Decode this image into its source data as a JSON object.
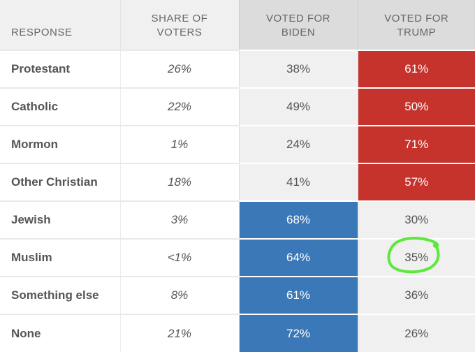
{
  "headers": {
    "response": "RESPONSE",
    "share": [
      "SHARE OF",
      "VOTERS"
    ],
    "biden": [
      "VOTED FOR",
      "BIDEN"
    ],
    "trump": [
      "VOTED FOR",
      "TRUMP"
    ]
  },
  "colors": {
    "trump_win": "#c5332c",
    "biden_win": "#3b78b8",
    "annotation": "#5de83a"
  },
  "rows": [
    {
      "response": "Protestant",
      "share": "26%",
      "biden": "38%",
      "trump": "61%",
      "winner": "trump"
    },
    {
      "response": "Catholic",
      "share": "22%",
      "biden": "49%",
      "trump": "50%",
      "winner": "trump"
    },
    {
      "response": "Mormon",
      "share": "1%",
      "biden": "24%",
      "trump": "71%",
      "winner": "trump"
    },
    {
      "response": "Other Christian",
      "share": "18%",
      "biden": "41%",
      "trump": "57%",
      "winner": "trump"
    },
    {
      "response": "Jewish",
      "share": "3%",
      "biden": "68%",
      "trump": "30%",
      "winner": "biden"
    },
    {
      "response": "Muslim",
      "share": "<1%",
      "biden": "64%",
      "trump": "35%",
      "winner": "biden"
    },
    {
      "response": "Something else",
      "share": "8%",
      "biden": "61%",
      "trump": "36%",
      "winner": "biden"
    },
    {
      "response": "None",
      "share": "21%",
      "biden": "72%",
      "trump": "26%",
      "winner": "biden"
    }
  ],
  "annotation": {
    "type": "hand-drawn-circle",
    "target": "Muslim / Voted for Trump"
  }
}
